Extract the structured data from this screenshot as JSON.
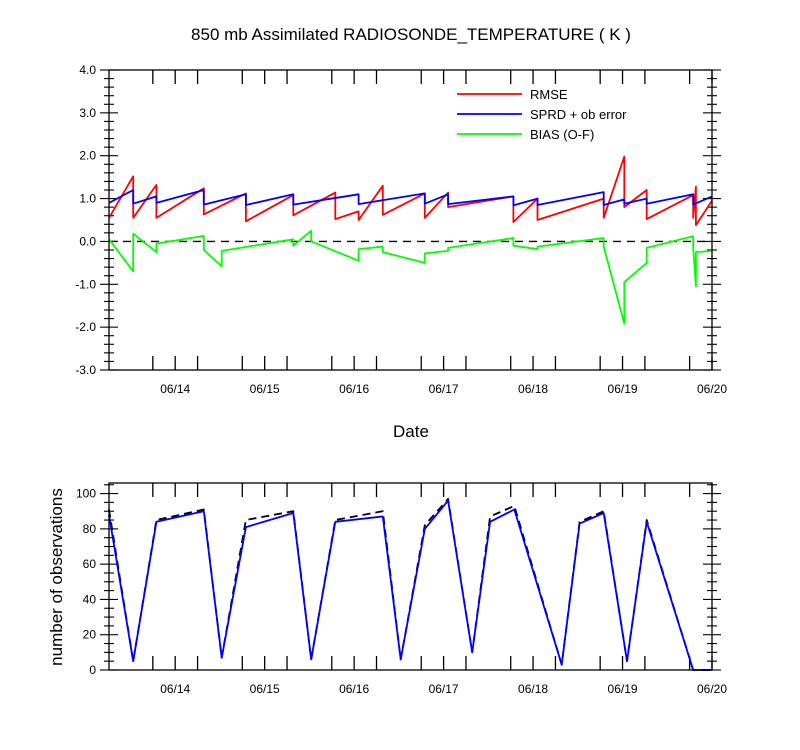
{
  "chart_data": [
    {
      "type": "line",
      "title": "850 mb Assimilated RADIOSONDE_TEMPERATURE ( K )",
      "xlabel": "Date",
      "ylabel": "",
      "x_tick_labels": [
        "06/14",
        "06/15",
        "06/16",
        "06/17",
        "06/18",
        "06/19",
        "06/20"
      ],
      "x_tick_days": [
        1,
        2,
        3,
        4,
        5,
        6,
        7
      ],
      "xlim": [
        0.26,
        7.0
      ],
      "ylim": [
        -3.0,
        4.0
      ],
      "y_tick_values": [
        -3.0,
        -2.0,
        -1.0,
        0.0,
        1.0,
        2.0,
        3.0,
        4.0
      ],
      "y_tick_labels": [
        "-3.0",
        "-2.0",
        "-1.0",
        "0.0",
        "1.0",
        "2.0",
        "3.0",
        "4.0"
      ],
      "zero_line": {
        "value": 0.0,
        "style": "dashed"
      },
      "legend_position": "top-right",
      "series": [
        {
          "name": "RMSE",
          "color": "#ff0000",
          "x": [
            0.26,
            0.53,
            0.53,
            0.79,
            0.79,
            1.32,
            1.32,
            1.79,
            1.79,
            2.32,
            2.32,
            2.79,
            2.79,
            3.05,
            3.05,
            3.32,
            3.32,
            3.79,
            3.79,
            4.05,
            4.05,
            4.78,
            4.78,
            5.05,
            5.05,
            5.79,
            5.79,
            6.02,
            6.02,
            6.27,
            6.27,
            6.79,
            6.79,
            6.82,
            6.82,
            7.0
          ],
          "y": [
            0.55,
            1.52,
            0.55,
            1.32,
            0.55,
            1.24,
            0.63,
            1.12,
            0.47,
            1.08,
            0.61,
            1.14,
            0.52,
            0.7,
            0.5,
            1.3,
            0.62,
            1.12,
            0.55,
            1.14,
            0.8,
            1.05,
            0.45,
            1.0,
            0.5,
            1.0,
            0.55,
            1.98,
            0.8,
            1.2,
            0.52,
            1.08,
            0.55,
            1.28,
            0.38,
            0.95
          ]
        },
        {
          "name": "SPRD + ob error",
          "color": "#0000ff",
          "x": [
            0.26,
            0.53,
            0.53,
            0.79,
            0.79,
            1.32,
            1.32,
            1.79,
            1.79,
            2.32,
            2.32,
            3.05,
            3.05,
            3.79,
            3.79,
            4.05,
            4.05,
            4.78,
            4.78,
            5.05,
            5.05,
            5.79,
            5.79,
            6.02,
            6.02,
            6.27,
            6.27,
            6.79,
            6.79,
            7.0
          ],
          "y": [
            0.9,
            1.2,
            0.88,
            1.05,
            0.9,
            1.2,
            0.86,
            1.1,
            0.85,
            1.1,
            0.86,
            1.1,
            0.87,
            1.12,
            0.88,
            1.1,
            0.87,
            1.05,
            0.84,
            1.0,
            0.85,
            1.15,
            0.85,
            0.98,
            0.88,
            1.0,
            0.88,
            1.1,
            0.86,
            1.05
          ]
        },
        {
          "name": "BIAS (O-F)",
          "color": "#00ff00",
          "x": [
            0.26,
            0.53,
            0.53,
            0.79,
            0.79,
            1.32,
            1.32,
            1.52,
            1.52,
            2.32,
            2.32,
            2.52,
            2.52,
            3.05,
            3.05,
            3.32,
            3.32,
            3.79,
            3.79,
            4.05,
            4.05,
            4.78,
            4.78,
            5.05,
            5.05,
            5.79,
            5.79,
            6.02,
            6.02,
            6.27,
            6.27,
            6.79,
            6.79,
            6.82,
            6.82,
            7.0
          ],
          "y": [
            0.05,
            -0.7,
            0.18,
            -0.25,
            -0.05,
            0.13,
            -0.2,
            -0.58,
            -0.22,
            0.05,
            -0.1,
            0.25,
            0.0,
            -0.45,
            -0.18,
            -0.12,
            -0.25,
            -0.5,
            -0.28,
            -0.22,
            -0.15,
            0.08,
            -0.1,
            -0.18,
            -0.12,
            0.08,
            -0.12,
            -1.92,
            -0.95,
            -0.5,
            -0.15,
            0.12,
            -0.15,
            -1.05,
            -0.25,
            -0.22
          ]
        }
      ]
    },
    {
      "type": "line",
      "title": "",
      "xlabel": "",
      "ylabel": "number of observations",
      "x_tick_labels": [
        "06/14",
        "06/15",
        "06/16",
        "06/17",
        "06/18",
        "06/19",
        "06/20"
      ],
      "x_tick_days": [
        1,
        2,
        3,
        4,
        5,
        6,
        7
      ],
      "xlim": [
        0.26,
        7.0
      ],
      "ylim": [
        0,
        106
      ],
      "y_tick_values": [
        0,
        20,
        40,
        60,
        80,
        100
      ],
      "y_tick_labels": [
        "0",
        "20",
        "40",
        "60",
        "80",
        "100"
      ],
      "series": [
        {
          "name": "",
          "color": "#000000",
          "style": "dashed",
          "x": [
            0.26,
            0.53,
            0.79,
            1.32,
            1.52,
            1.79,
            2.32,
            2.52,
            2.79,
            3.32,
            3.52,
            3.79,
            4.05,
            4.32,
            4.52,
            4.79,
            5.32,
            5.52,
            5.79,
            6.05,
            6.27,
            6.79,
            7.0
          ],
          "y": [
            91,
            5,
            85,
            91,
            7,
            85,
            90,
            6,
            85,
            90,
            6,
            82,
            97,
            10,
            87,
            93,
            3,
            84,
            90,
            5,
            85,
            0,
            0
          ]
        },
        {
          "name": "",
          "color": "#0000ff",
          "x": [
            0.26,
            0.53,
            0.79,
            1.32,
            1.52,
            1.79,
            2.32,
            2.52,
            2.79,
            3.32,
            3.52,
            3.79,
            4.05,
            4.32,
            4.52,
            4.79,
            5.32,
            5.52,
            5.79,
            6.05,
            6.27,
            6.79,
            7.0
          ],
          "y": [
            88,
            5,
            84,
            90,
            7,
            81,
            89,
            6,
            84,
            87,
            6,
            80,
            96,
            10,
            84,
            91,
            3,
            83,
            89,
            5,
            84,
            0,
            0
          ]
        }
      ]
    }
  ]
}
